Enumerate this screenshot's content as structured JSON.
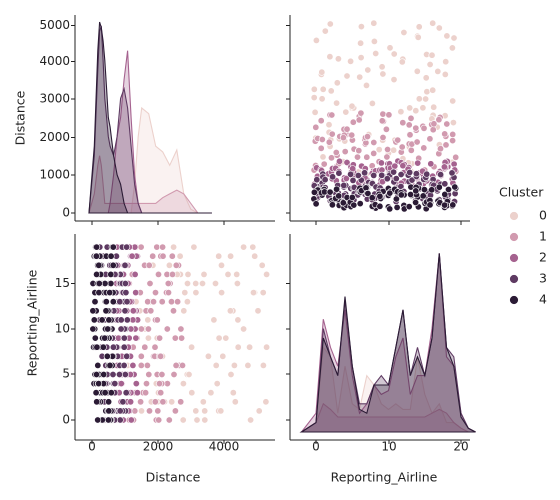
{
  "chart_data": {
    "type": "pairplot",
    "variables": [
      "Distance",
      "Reporting_Airline"
    ],
    "hue": "Cluster",
    "legend": {
      "title": "Cluster",
      "placement": "right",
      "entries": [
        {
          "label": "0",
          "color": "#ecd1cc"
        },
        {
          "label": "1",
          "color": "#d19aaf"
        },
        {
          "label": "2",
          "color": "#a5628f"
        },
        {
          "label": "3",
          "color": "#5e3a62"
        },
        {
          "label": "4",
          "color": "#2b1b35"
        }
      ]
    },
    "panels": {
      "distance_kde": {
        "type": "area",
        "xlim": [
          -400,
          5300
        ],
        "x": [
          0,
          150,
          250,
          300,
          350,
          400,
          450,
          500,
          550,
          600,
          700,
          800,
          900,
          1000,
          1100,
          1200,
          1300,
          1400,
          1500,
          1700,
          1900,
          2100,
          2300,
          2500,
          2700,
          2900,
          3100,
          3500
        ],
        "series": [
          {
            "name": "0",
            "color": "#ecd1cc",
            "values": [
              0,
              0,
              0,
              0,
              0,
              0,
              0,
              0,
              0,
              0,
              0,
              0,
              0,
              0,
              0,
              0,
              0.15,
              0.4,
              0.55,
              0.52,
              0.35,
              0.32,
              0.25,
              0.33,
              0.1,
              0.02,
              0,
              0
            ]
          },
          {
            "name": "1",
            "color": "#d19aaf",
            "values": [
              0,
              0.1,
              0.25,
              0.3,
              0.25,
              0.15,
              0.05,
              0.05,
              0.05,
              0.05,
              0.05,
              0.05,
              0.05,
              0.05,
              0.05,
              0.05,
              0.05,
              0.05,
              0.05,
              0.05,
              0.05,
              0.08,
              0.1,
              0.12,
              0.1,
              0.05,
              0,
              0
            ]
          },
          {
            "name": "2",
            "color": "#a5628f",
            "values": [
              0,
              0,
              0,
              0,
              0,
              0,
              0,
              0,
              0,
              0.05,
              0.2,
              0.4,
              0.5,
              0.7,
              0.85,
              0.5,
              0.2,
              0.05,
              0,
              0,
              0,
              0,
              0,
              0,
              0,
              0,
              0,
              0
            ]
          },
          {
            "name": "3",
            "color": "#5e3a62",
            "values": [
              0,
              0.3,
              0.75,
              0.95,
              0.98,
              0.8,
              0.6,
              0.5,
              0.4,
              0.35,
              0.3,
              0.4,
              0.6,
              0.65,
              0.55,
              0.35,
              0.15,
              0.05,
              0,
              0,
              0,
              0,
              0,
              0,
              0,
              0,
              0,
              0
            ]
          },
          {
            "name": "4",
            "color": "#2b1b35",
            "values": [
              0,
              0.35,
              0.85,
              1.0,
              0.97,
              0.9,
              0.8,
              0.65,
              0.5,
              0.45,
              0.3,
              0.2,
              0.15,
              0.05,
              0,
              0,
              0,
              0,
              0,
              0,
              0,
              0,
              0,
              0,
              0,
              0,
              0,
              0
            ]
          }
        ]
      },
      "airline_kde": {
        "type": "area",
        "xlim": [
          -3,
          23
        ],
        "x": [
          -2,
          0,
          1,
          2,
          3,
          4,
          5,
          6,
          7,
          8,
          9,
          10,
          11,
          12,
          13,
          14,
          15,
          16,
          17,
          18,
          19,
          20,
          21,
          22
        ],
        "series": [
          {
            "name": "0",
            "color": "#ecd1cc",
            "values": [
              0,
              0.05,
              0.45,
              0.4,
              0.1,
              0.35,
              0.15,
              0.12,
              0.3,
              0.25,
              0.15,
              0.12,
              0.15,
              0.12,
              0.12,
              0.4,
              0.2,
              0.1,
              0.15,
              0.05,
              0.05,
              0.02,
              0,
              0
            ]
          },
          {
            "name": "1",
            "color": "#d19aaf",
            "values": [
              0,
              0.05,
              0.15,
              0.12,
              0.08,
              0.08,
              0.08,
              0.08,
              0.08,
              0.08,
              0.08,
              0.08,
              0.08,
              0.08,
              0.08,
              0.08,
              0.08,
              0.1,
              0.12,
              0.1,
              0.05,
              0.02,
              0,
              0
            ]
          },
          {
            "name": "2",
            "color": "#a5628f",
            "values": [
              0,
              0.1,
              0.6,
              0.45,
              0.35,
              0.65,
              0.3,
              0.1,
              0.15,
              0.25,
              0.2,
              0.22,
              0.4,
              0.5,
              0.2,
              0.3,
              0.3,
              0.55,
              0.95,
              0.4,
              0.35,
              0.1,
              0.02,
              0
            ]
          },
          {
            "name": "3",
            "color": "#5e3a62",
            "values": [
              0,
              0.05,
              0.55,
              0.4,
              0.3,
              0.7,
              0.35,
              0.15,
              0.15,
              0.25,
              0.3,
              0.25,
              0.45,
              0.65,
              0.3,
              0.45,
              0.3,
              0.5,
              0.95,
              0.45,
              0.4,
              0.1,
              0.02,
              0
            ]
          },
          {
            "name": "4",
            "color": "#2b1b35",
            "values": [
              0,
              0.05,
              0.5,
              0.4,
              0.3,
              0.72,
              0.35,
              0.12,
              0.1,
              0.25,
              0.25,
              0.25,
              0.45,
              0.65,
              0.3,
              0.4,
              0.3,
              0.5,
              0.95,
              0.45,
              0.35,
              0.08,
              0.02,
              0
            ]
          }
        ]
      },
      "scatter_distance_vs_airline": {
        "type": "scatter",
        "xlim": [
          -400,
          5300
        ],
        "ylim": [
          -1,
          20
        ],
        "clusters": [
          {
            "name": "0",
            "color": "#ecd1cc",
            "min_distance": 1000,
            "max_distance": 5100
          },
          {
            "name": "1",
            "color": "#d19aaf",
            "min_distance": 1100,
            "max_distance": 2700
          },
          {
            "name": "2",
            "color": "#a5628f",
            "min_distance": 700,
            "max_distance": 1400
          },
          {
            "name": "3",
            "color": "#5e3a62",
            "min_distance": 300,
            "max_distance": 1100
          },
          {
            "name": "4",
            "color": "#2b1b35",
            "min_distance": 100,
            "max_distance": 700
          }
        ]
      }
    },
    "tick_labels": {
      "distance": [
        "0",
        "1000",
        "2000",
        "3000",
        "4000",
        "5000"
      ],
      "distance_x": [
        "0",
        "2000",
        "4000"
      ],
      "airline": [
        "0",
        "5",
        "10",
        "15"
      ],
      "airline_x": [
        "0",
        "10",
        "20"
      ]
    },
    "axis_labels": {
      "left_top": "Distance",
      "left_bottom": "Reporting_Airline",
      "bottom_left": "Distance",
      "bottom_right": "Reporting_Airline"
    }
  }
}
